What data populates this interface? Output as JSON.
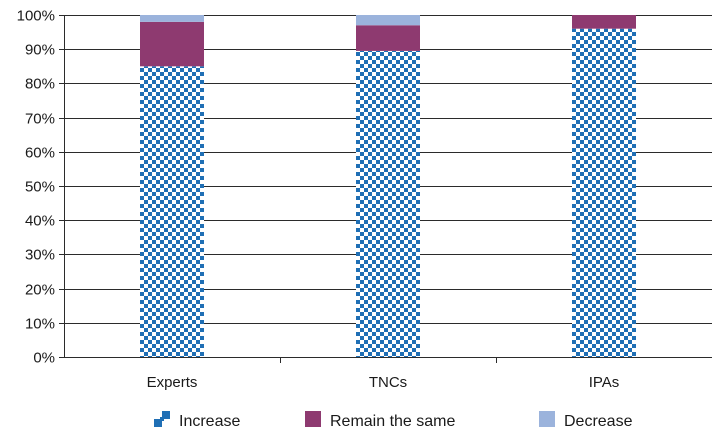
{
  "chart_data": {
    "type": "bar",
    "stacked": true,
    "percent": true,
    "categories": [
      "Experts",
      "TNCs",
      "IPAs"
    ],
    "series": [
      {
        "name": "Increase",
        "values": [
          85,
          89.5,
          96
        ],
        "color": "#1f6fb5",
        "pattern": "checkerboard"
      },
      {
        "name": "Remain the same",
        "values": [
          13,
          7.5,
          4
        ],
        "color": "#8e3a70"
      },
      {
        "name": "Decrease",
        "values": [
          2,
          3,
          0
        ],
        "color": "#9bb3dc"
      }
    ],
    "ylim": [
      0,
      100
    ],
    "yticks": [
      "0%",
      "10%",
      "20%",
      "30%",
      "40%",
      "50%",
      "60%",
      "70%",
      "80%",
      "90%",
      "100%"
    ],
    "grid": true,
    "legend_position": "bottom"
  }
}
